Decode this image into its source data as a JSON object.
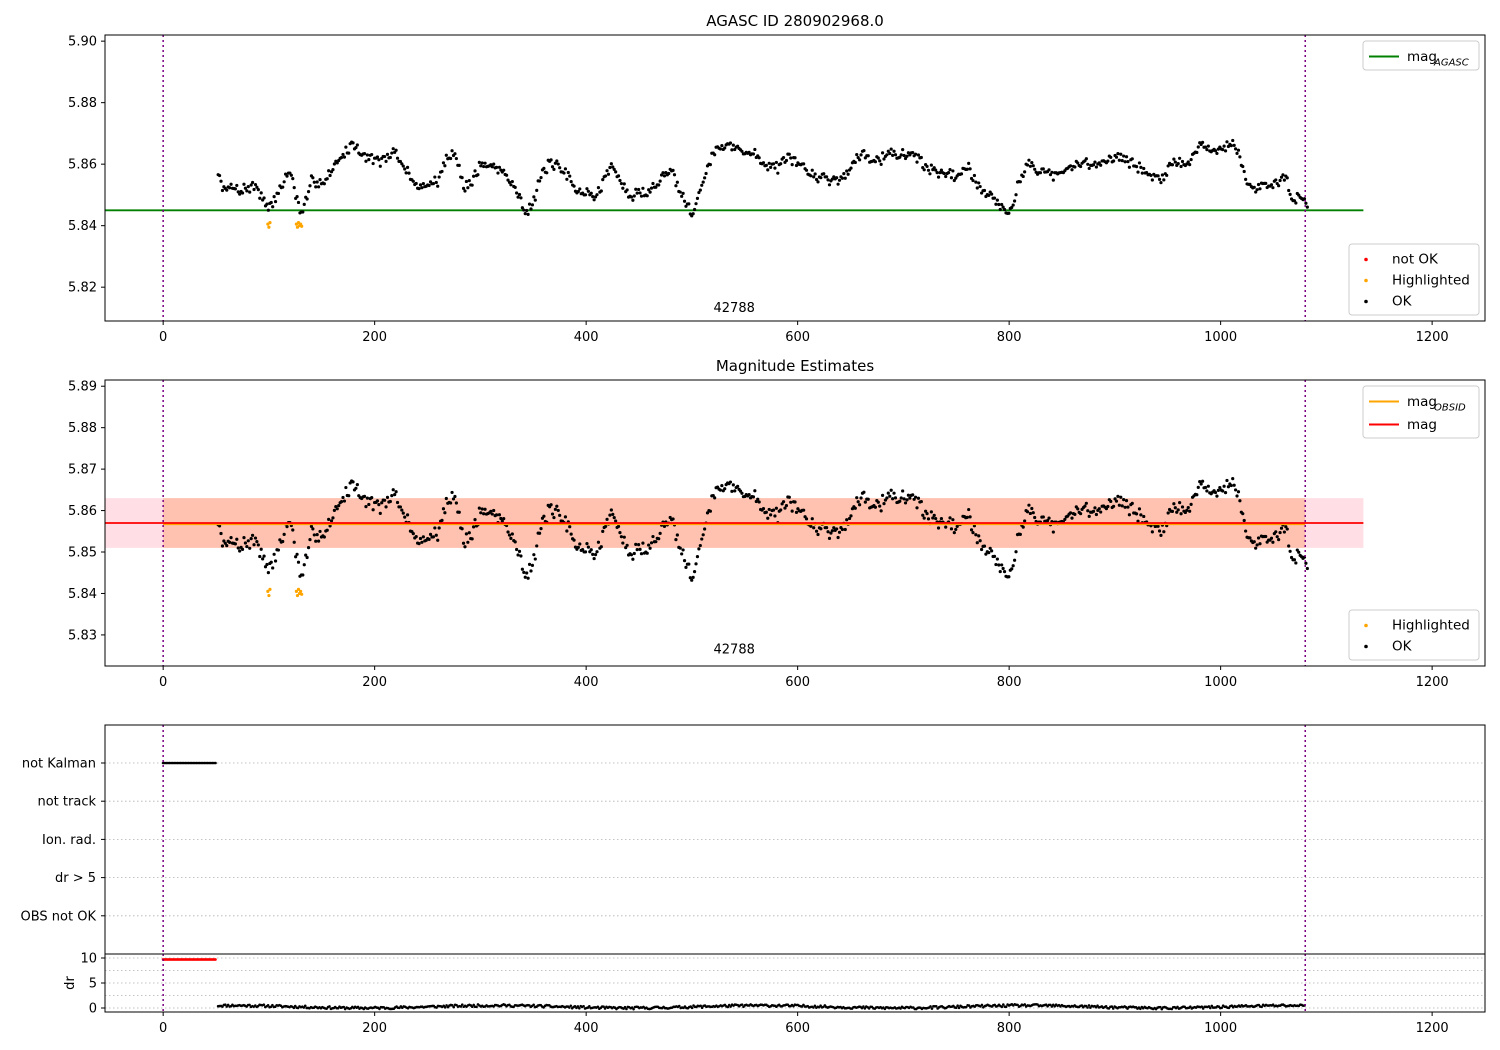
{
  "chart_data": [
    {
      "type": "scatter",
      "title": "AGASC ID 280902968.0",
      "xlim": [
        -55,
        1250
      ],
      "ylim": [
        5.809,
        5.902
      ],
      "xticks": [
        0,
        200,
        400,
        600,
        800,
        1000,
        1200
      ],
      "yticks": [
        5.82,
        5.84,
        5.86,
        5.88,
        5.9
      ],
      "ytick_labels": [
        "5.82",
        "5.84",
        "5.86",
        "5.88",
        "5.90"
      ],
      "annotation": {
        "text": "42788",
        "x": 540,
        "y": 5.812
      },
      "vlines": [
        0,
        1080
      ],
      "hline": {
        "name": "mag_AGASC",
        "y": 5.845,
        "x": [
          -55,
          1135
        ],
        "color": "#008000"
      },
      "legend_lines": [
        {
          "label": "mag",
          "sub": "AGASC",
          "color": "#008000"
        }
      ],
      "legend_markers": [
        {
          "label": "not OK",
          "color": "#ff0000"
        },
        {
          "label": "Highlighted",
          "color": "#ffa500"
        },
        {
          "label": "OK",
          "color": "#000000"
        }
      ],
      "legend_lines_position": "upper right",
      "legend_markers_position": "lower right",
      "series": [
        {
          "name": "OK",
          "color": "#000000",
          "x_range": [
            52,
            1082
          ],
          "n": 760,
          "seed": 7,
          "baseline": 5.857,
          "knots": [
            [
              52,
              5.856
            ],
            [
              60,
              5.852
            ],
            [
              80,
              5.853
            ],
            [
              90,
              5.853
            ],
            [
              100,
              5.845
            ],
            [
              110,
              5.852
            ],
            [
              120,
              5.858
            ],
            [
              130,
              5.843
            ],
            [
              140,
              5.852
            ],
            [
              160,
              5.858
            ],
            [
              180,
              5.867
            ],
            [
              200,
              5.862
            ],
            [
              220,
              5.862
            ],
            [
              240,
              5.853
            ],
            [
              260,
              5.854
            ],
            [
              275,
              5.866
            ],
            [
              285,
              5.852
            ],
            [
              300,
              5.86
            ],
            [
              320,
              5.858
            ],
            [
              345,
              5.846
            ],
            [
              365,
              5.86
            ],
            [
              390,
              5.852
            ],
            [
              410,
              5.85
            ],
            [
              425,
              5.86
            ],
            [
              440,
              5.849
            ],
            [
              460,
              5.852
            ],
            [
              480,
              5.858
            ],
            [
              500,
              5.846
            ],
            [
              520,
              5.864
            ],
            [
              545,
              5.866
            ],
            [
              570,
              5.86
            ],
            [
              600,
              5.859
            ],
            [
              620,
              5.856
            ],
            [
              640,
              5.855
            ],
            [
              660,
              5.864
            ],
            [
              700,
              5.864
            ],
            [
              740,
              5.856
            ],
            [
              760,
              5.859
            ],
            [
              780,
              5.851
            ],
            [
              800,
              5.845
            ],
            [
              820,
              5.862
            ],
            [
              840,
              5.856
            ],
            [
              860,
              5.858
            ],
            [
              880,
              5.86
            ],
            [
              900,
              5.864
            ],
            [
              920,
              5.859
            ],
            [
              940,
              5.856
            ],
            [
              960,
              5.858
            ],
            [
              980,
              5.865
            ],
            [
              1000,
              5.865
            ],
            [
              1015,
              5.866
            ],
            [
              1025,
              5.853
            ],
            [
              1045,
              5.853
            ],
            [
              1060,
              5.856
            ],
            [
              1070,
              5.849
            ],
            [
              1082,
              5.849
            ]
          ]
        },
        {
          "name": "Highlighted",
          "color": "#ffa500",
          "x": [
            99,
            100,
            101,
            126,
            127,
            128,
            129,
            130,
            131
          ],
          "y": [
            5.8405,
            5.8395,
            5.841,
            5.8405,
            5.8395,
            5.841,
            5.84,
            5.8405,
            5.8398
          ]
        }
      ]
    },
    {
      "type": "scatter",
      "title": "Magnitude Estimates",
      "xlim": [
        -55,
        1250
      ],
      "ylim": [
        5.8225,
        5.8915
      ],
      "xticks": [
        0,
        200,
        400,
        600,
        800,
        1000,
        1200
      ],
      "yticks": [
        5.83,
        5.84,
        5.85,
        5.86,
        5.87,
        5.88,
        5.89
      ],
      "ytick_labels": [
        "5.83",
        "5.84",
        "5.85",
        "5.86",
        "5.87",
        "5.88",
        "5.89"
      ],
      "annotation": {
        "text": "42788",
        "x": 540,
        "y": 5.8255
      },
      "vlines": [
        0,
        1080
      ],
      "bands": [
        {
          "x": [
            -55,
            1135
          ],
          "y": [
            5.851,
            5.863
          ],
          "color": "#ffc0cb",
          "opacity": 0.5
        },
        {
          "x": [
            0,
            1080
          ],
          "y": [
            5.851,
            5.863
          ],
          "color": "#ff9f6e",
          "opacity": 0.45
        }
      ],
      "hlines": [
        {
          "name": "mag_OBSID",
          "y": 5.8568,
          "x": [
            0,
            1080
          ],
          "color": "#ffa500",
          "width": 2.5
        },
        {
          "name": "mag",
          "y": 5.857,
          "x": [
            -55,
            1135
          ],
          "color": "#ff0000",
          "width": 1.8
        }
      ],
      "legend_lines": [
        {
          "label": "mag",
          "sub": "OBSID",
          "color": "#ffa500"
        },
        {
          "label": "mag",
          "sub": "",
          "color": "#ff0000"
        }
      ],
      "legend_markers": [
        {
          "label": "Highlighted",
          "color": "#ffa500"
        },
        {
          "label": "OK",
          "color": "#000000"
        }
      ],
      "legend_lines_position": "upper right",
      "legend_markers_position": "lower right",
      "series_from_panel": 0
    },
    {
      "type": "scatter",
      "title": "",
      "xlim": [
        -55,
        1250
      ],
      "categories": [
        "not Kalman",
        "not track",
        "Ion. rad.",
        "dr > 5",
        "OBS not OK"
      ],
      "flag_series": [
        {
          "name": "not Kalman",
          "x_range": [
            0,
            50
          ],
          "color": "#000000"
        }
      ],
      "vlines": [
        0,
        1080
      ],
      "grid": true
    },
    {
      "type": "scatter",
      "title": "",
      "ylabel": "dr",
      "xlim": [
        -55,
        1250
      ],
      "ylim": [
        -0.8,
        10.8
      ],
      "xticks": [
        0,
        200,
        400,
        600,
        800,
        1000,
        1200
      ],
      "yticks": [
        0,
        5,
        10
      ],
      "ytick_labels": [
        "0",
        "5",
        "10"
      ],
      "vlines": [
        0,
        1080
      ],
      "series": [
        {
          "name": "dr capped",
          "color": "#ff0000",
          "x_range": [
            0,
            50
          ],
          "y": 9.7
        },
        {
          "name": "dr",
          "color": "#000000",
          "x_range": [
            52,
            1080
          ],
          "y_base": 0.25,
          "y_amp": 0.25
        }
      ]
    }
  ]
}
